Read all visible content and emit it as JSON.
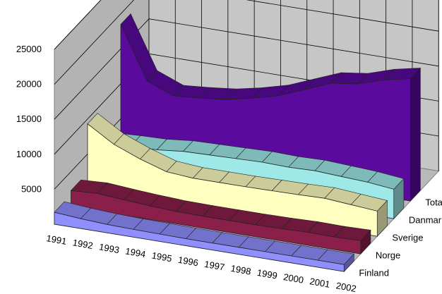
{
  "chart_data": {
    "type": "area",
    "subtype": "3d-ribbon",
    "categories": [
      "1991",
      "1992",
      "1993",
      "1994",
      "1995",
      "1996",
      "1997",
      "1998",
      "1999",
      "2000",
      "2001",
      "2002"
    ],
    "y_ticks": [
      5000,
      10000,
      15000,
      20000,
      25000
    ],
    "ylim": [
      0,
      25000
    ],
    "grid": true,
    "series": [
      {
        "name": "Finland",
        "color": "#8f8fff",
        "values": [
          1700,
          1400,
          1200,
          1100,
          1050,
          1000,
          1000,
          1000,
          1000,
          1000,
          1000,
          1000
        ]
      },
      {
        "name": "Norge",
        "color": "#8a1f4a",
        "values": [
          2300,
          2500,
          2200,
          1950,
          1750,
          1700,
          1700,
          1700,
          1750,
          1850,
          1800,
          1900
        ]
      },
      {
        "name": "Sverige",
        "color": "#ffffc0",
        "values": [
          9300,
          7000,
          5500,
          4300,
          4000,
          4000,
          4000,
          4050,
          4100,
          4200,
          3900,
          3600
        ]
      },
      {
        "name": "Danmark",
        "color": "#9ee8e8",
        "values": [
          4000,
          4200,
          4300,
          4700,
          4800,
          4900,
          5000,
          4900,
          5000,
          4800,
          4600,
          4200
        ]
      },
      {
        "name": "Totalt",
        "color": "#5a0a9c",
        "values": [
          18500,
          11000,
          9500,
          9800,
          10200,
          11000,
          12000,
          13500,
          15000,
          15500,
          16700,
          17500
        ]
      }
    ]
  }
}
